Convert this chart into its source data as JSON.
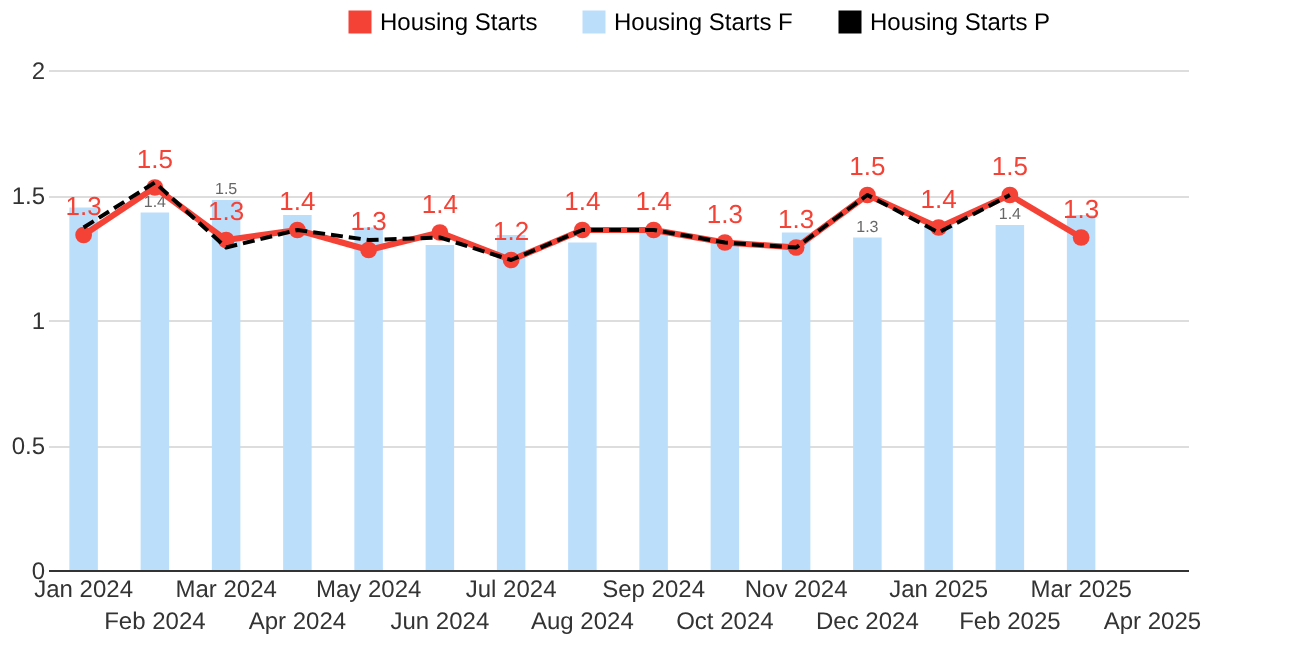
{
  "chart_data": {
    "type": "bar",
    "categories": [
      "Jan 2024",
      "Feb 2024",
      "Mar 2024",
      "Apr 2024",
      "May 2024",
      "Jun 2024",
      "Jul 2024",
      "Aug 2024",
      "Sep 2024",
      "Oct 2024",
      "Nov 2024",
      "Dec 2024",
      "Jan 2025",
      "Feb 2025",
      "Mar 2025",
      "Apr 2025"
    ],
    "series": [
      {
        "name": "Housing Starts",
        "type": "line",
        "color": "#f44336",
        "marker": "circle",
        "line_style": "solid",
        "values": [
          1.34,
          1.53,
          1.32,
          1.36,
          1.28,
          1.35,
          1.24,
          1.36,
          1.36,
          1.31,
          1.29,
          1.5,
          1.37,
          1.5,
          1.33,
          null
        ],
        "value_labels": [
          "1.3",
          "1.5",
          "1.3",
          "1.4",
          "1.3",
          "1.4",
          "1.2",
          "1.4",
          "1.4",
          "1.3",
          "1.3",
          "1.5",
          "1.4",
          "1.5",
          "1.3",
          null
        ]
      },
      {
        "name": "Housing Starts F",
        "color": "#bbdefb",
        "values": [
          1.45,
          1.43,
          1.48,
          1.42,
          1.37,
          1.3,
          1.34,
          1.31,
          1.35,
          1.31,
          1.35,
          1.33,
          1.38,
          1.38,
          1.42,
          null
        ],
        "value_labels": [
          null,
          "1.4",
          "1.5",
          null,
          null,
          null,
          null,
          null,
          null,
          null,
          null,
          "1.3",
          null,
          "1.4",
          null,
          null
        ]
      },
      {
        "name": "Housing Starts P",
        "type": "line",
        "color": "#000000",
        "marker": "none",
        "line_style": "dashed",
        "values": [
          1.37,
          1.55,
          1.29,
          1.36,
          1.32,
          1.33,
          1.24,
          1.36,
          1.36,
          1.31,
          1.29,
          1.5,
          1.35,
          1.5,
          null,
          null
        ]
      }
    ],
    "ylim": [
      0,
      2
    ],
    "yticks": [
      0,
      0.5,
      1,
      1.5,
      2
    ],
    "grid": "y",
    "legend": "top right"
  }
}
